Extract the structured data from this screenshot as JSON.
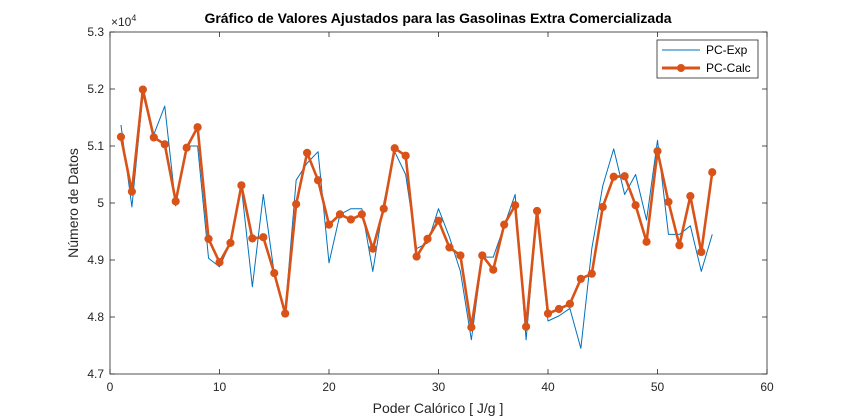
{
  "chart_data": {
    "type": "line",
    "title": "Gráfico de Valores Ajustados para las Gasolinas Extra Comercializada",
    "xlabel": "Poder Calórico [ J/g ]",
    "ylabel": "Número de Datos",
    "y_exponent_label": "×10",
    "y_exponent_power": "4",
    "xlim": [
      0,
      60
    ],
    "ylim": [
      4.7,
      5.3
    ],
    "x_ticks": [
      0,
      10,
      20,
      30,
      40,
      50,
      60
    ],
    "y_ticks": [
      4.7,
      4.8,
      4.9,
      5.0,
      5.1,
      5.2,
      5.3
    ],
    "x_tick_labels": [
      "0",
      "10",
      "20",
      "30",
      "40",
      "50",
      "60"
    ],
    "y_tick_labels": [
      "4.7",
      "4.8",
      "4.9",
      "5",
      "5.1",
      "5.2",
      "5.3"
    ],
    "grid": false,
    "legend_position": "top-right",
    "x": [
      1,
      2,
      3,
      4,
      5,
      6,
      7,
      8,
      9,
      10,
      11,
      12,
      13,
      14,
      15,
      16,
      17,
      18,
      19,
      20,
      21,
      22,
      23,
      24,
      25,
      26,
      27,
      28,
      29,
      30,
      31,
      32,
      33,
      34,
      35,
      36,
      37,
      38,
      39,
      40,
      41,
      42,
      43,
      44,
      45,
      46,
      47,
      48,
      49,
      50,
      51,
      52,
      53,
      54,
      55
    ],
    "series": [
      {
        "name": "PC-Exp",
        "color": "#0072BD",
        "style": "thin-line",
        "values": [
          5.137,
          4.993,
          5.19,
          5.12,
          5.17,
          4.995,
          5.1,
          5.1,
          4.903,
          4.888,
          4.93,
          5.028,
          4.853,
          5.015,
          4.876,
          4.81,
          5.04,
          5.07,
          5.09,
          4.895,
          4.98,
          4.99,
          4.99,
          4.88,
          5.0,
          5.09,
          5.05,
          4.92,
          4.93,
          4.99,
          4.94,
          4.88,
          4.76,
          4.905,
          4.905,
          4.96,
          5.015,
          4.76,
          4.98,
          4.793,
          4.802,
          4.815,
          4.745,
          4.92,
          5.03,
          5.095,
          5.015,
          5.05,
          4.97,
          5.11,
          4.945,
          4.945,
          4.96,
          4.88,
          4.945
        ]
      },
      {
        "name": "PC-Calc",
        "color": "#D95319",
        "style": "thick-line-markers",
        "values": [
          5.116,
          5.02,
          5.199,
          5.115,
          5.103,
          5.003,
          5.097,
          5.133,
          4.937,
          4.896,
          4.93,
          5.031,
          4.938,
          4.94,
          4.877,
          4.806,
          4.998,
          5.088,
          5.04,
          4.962,
          4.98,
          4.971,
          4.98,
          4.92,
          4.99,
          5.096,
          5.083,
          4.906,
          4.937,
          4.969,
          4.922,
          4.908,
          4.782,
          4.908,
          4.883,
          4.962,
          4.996,
          4.783,
          4.986,
          4.806,
          4.814,
          4.823,
          4.867,
          4.876,
          4.993,
          5.046,
          5.047,
          4.996,
          4.932,
          5.091,
          5.002,
          4.926,
          5.012,
          4.914,
          5.054
        ]
      }
    ]
  }
}
